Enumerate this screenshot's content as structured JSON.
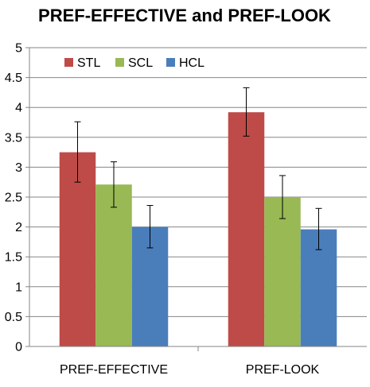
{
  "chart_data": {
    "type": "bar",
    "title": "PREF-EFFECTIVE and PREF-LOOK",
    "xlabel": "",
    "ylabel": "",
    "categories": [
      "PREF-EFFECTIVE",
      "PREF-LOOK"
    ],
    "ylim": [
      0,
      5
    ],
    "yticks": [
      "0",
      "0.5",
      "1",
      "1.5",
      "2",
      "2.5",
      "3",
      "3.5",
      "4",
      "4.5",
      "5"
    ],
    "grid": true,
    "legend_position": "top-left",
    "series": [
      {
        "name": "STL",
        "color": "#BE4B48",
        "values": [
          3.25,
          3.92
        ],
        "error_low": [
          2.75,
          3.52
        ],
        "error_high": [
          3.76,
          4.33
        ]
      },
      {
        "name": "SCL",
        "color": "#98B954",
        "values": [
          2.71,
          2.5
        ],
        "error_low": [
          2.33,
          2.14
        ],
        "error_high": [
          3.09,
          2.86
        ]
      },
      {
        "name": "HCL",
        "color": "#4A7EBB",
        "values": [
          2.0,
          1.96
        ],
        "error_low": [
          1.65,
          1.62
        ],
        "error_high": [
          2.36,
          2.31
        ]
      }
    ]
  }
}
